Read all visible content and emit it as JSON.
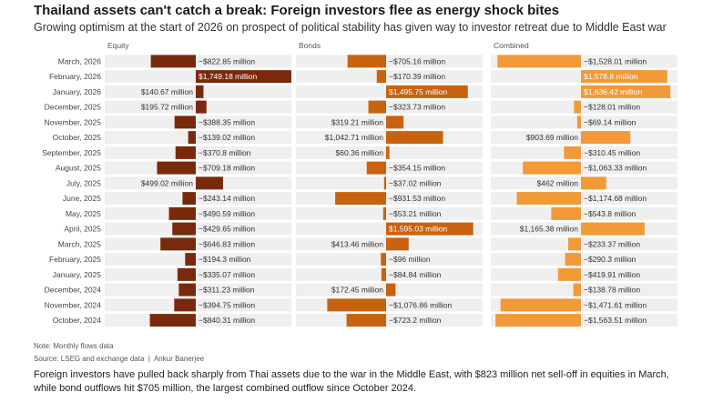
{
  "header": {
    "title": "Thailand assets can't catch a break: Foreign investors flee as energy shock bites",
    "subtitle": "Growing optimism at the start of 2026 on prospect of political stability has given way to investor retreat due to Middle East war"
  },
  "footer": {
    "note": "Note: Monthly flows data",
    "source": "Source: LSEG and exchange data",
    "author": "Ankur Banerjee",
    "caption": "Foreign investors have pulled back sharply from Thai assets due to the war in the Middle East, with $823 million net sell-off in equities in March, while bond outflows hit $705 million, the largest combined outflow since October 2024."
  },
  "colors": {
    "equity": "#7a2a0c",
    "bonds": "#c8620e",
    "combined": "#f29a38",
    "row_bg": "#efefef",
    "label_on_bar": "#ffffff"
  },
  "chart_data": {
    "type": "bar",
    "orientation": "horizontal",
    "unit": "million USD",
    "categories": [
      "March, 2026",
      "February, 2026",
      "January, 2026",
      "December, 2025",
      "November, 2025",
      "October, 2025",
      "September, 2025",
      "August, 2025",
      "July, 2025",
      "June, 2025",
      "May, 2025",
      "April, 2025",
      "March, 2025",
      "February, 2025",
      "January, 2025",
      "December, 2024",
      "November, 2024",
      "October, 2024"
    ],
    "series": [
      {
        "name": "Equity",
        "values": [
          -822.85,
          1749.18,
          140.67,
          195.72,
          -388.35,
          -139.02,
          -370.8,
          -709.18,
          499.02,
          -243.14,
          -490.59,
          -429.65,
          -646.83,
          -194.3,
          -335.07,
          -311.23,
          -394.75,
          -840.31
        ],
        "labels": [
          "−$822.85 million",
          "$1,749.18 million",
          "$140.67 million",
          "$195.72 million",
          "−$388.35 million",
          "−$139.02 million",
          "−$370.8 million",
          "−$709.18 million",
          "$499.02 million",
          "−$243.14 million",
          "−$490.59 million",
          "−$429.65 million",
          "−$646.83 million",
          "−$194.3 million",
          "−$335.07 million",
          "−$311.23 million",
          "−$394.75 million",
          "−$840.31 million"
        ]
      },
      {
        "name": "Bonds",
        "values": [
          -705.16,
          -170.39,
          1495.75,
          -323.73,
          319.21,
          1042.71,
          60.36,
          -354.15,
          -37.02,
          -931.53,
          -53.21,
          1595.03,
          413.46,
          -96,
          -84.84,
          172.45,
          -1076.86,
          -723.2
        ],
        "labels": [
          "−$705.16 million",
          "−$170.39 million",
          "$1,495.75 million",
          "−$323.73 million",
          "$319.21 million",
          "$1,042.71 million",
          "$60.36 million",
          "−$354.15 million",
          "−$37.02 million",
          "−$931.53 million",
          "−$53.21 million",
          "$1,595.03 million",
          "$413.46 million",
          "−$96 million",
          "−$84.84 million",
          "$172.45 million",
          "−$1,076.86 million",
          "−$723.2 million"
        ]
      },
      {
        "name": "Combined",
        "values": [
          -1528.01,
          1578.8,
          1636.42,
          -128.01,
          -69.14,
          903.69,
          -310.45,
          -1063.33,
          462,
          -1174.68,
          -543.8,
          1165.38,
          -233.37,
          -290.3,
          -419.91,
          -138.78,
          -1471.61,
          -1563.51
        ],
        "labels": [
          "−$1,528.01 million",
          "$1,578.8 million",
          "$1,636.42 million",
          "−$128.01 million",
          "−$69.14 million",
          "$903.69 million",
          "−$310.45 million",
          "−$1,063.33 million",
          "$462 million",
          "−$1,174.68 million",
          "−$543.8 million",
          "$1,165.38 million",
          "−$233.37 million",
          "−$290.3 million",
          "−$419.91 million",
          "−$138.78 million",
          "−$1,471.61 million",
          "−$1,563.51 million"
        ]
      }
    ]
  }
}
